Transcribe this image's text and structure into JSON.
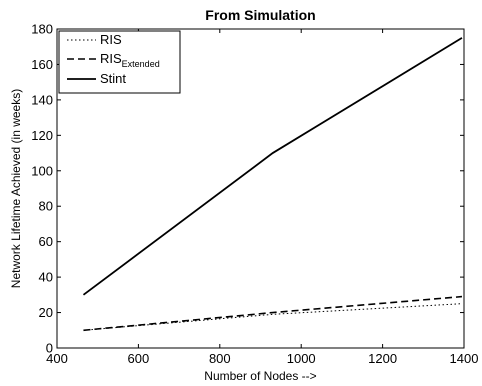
{
  "chart_data": {
    "type": "line",
    "title": "From Simulation",
    "xlabel": "Number of Nodes -->",
    "ylabel": "Network Lifetime Achieved (in weeks)",
    "xlim": [
      400,
      1400
    ],
    "ylim": [
      0,
      180
    ],
    "xticks": [
      400,
      600,
      800,
      1000,
      1200,
      1400
    ],
    "yticks": [
      0,
      20,
      40,
      60,
      80,
      100,
      120,
      140,
      160,
      180
    ],
    "grid": false,
    "legend_position": "top-left",
    "series": [
      {
        "name": "RIS",
        "style": "dotted",
        "color": "#000000",
        "x": [
          465,
          930,
          1395
        ],
        "y": [
          10,
          19,
          25
        ]
      },
      {
        "name": "RIS",
        "name_subscript": "Extended",
        "style": "dashed",
        "color": "#000000",
        "x": [
          465,
          930,
          1395
        ],
        "y": [
          10,
          20,
          29
        ]
      },
      {
        "name": "Stint",
        "style": "solid",
        "color": "#000000",
        "x": [
          465,
          930,
          1395
        ],
        "y": [
          30,
          110,
          175
        ]
      }
    ]
  }
}
